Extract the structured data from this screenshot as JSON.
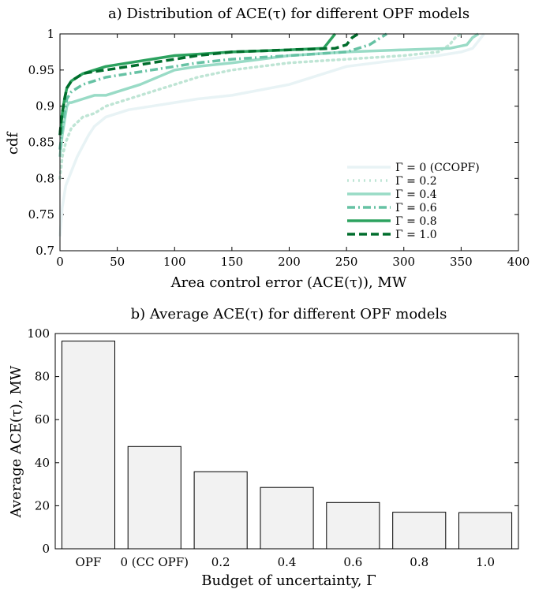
{
  "chart_data": [
    {
      "type": "line",
      "title": "a) Distribution of ACE(τ) for different OPF models",
      "xlabel": "Area control error (ACE(τ)), MW",
      "ylabel": "cdf",
      "xlim": [
        0,
        400
      ],
      "ylim": [
        0.7,
        1.0
      ],
      "xticks": [
        "0",
        "50",
        "100",
        "150",
        "200",
        "250",
        "300",
        "350",
        "400"
      ],
      "yticks": [
        "0.7",
        "0.75",
        "0.8",
        "0.85",
        "0.9",
        "0.95",
        "1"
      ],
      "grid": false,
      "legend_position": "bottom-right",
      "series": [
        {
          "name": "Γ = 0 (CCOPF)",
          "color": "#e8f3f5",
          "dash": "solid",
          "x": [
            0,
            2,
            5,
            10,
            15,
            20,
            25,
            30,
            40,
            50,
            60,
            80,
            100,
            120,
            150,
            200,
            250,
            300,
            330,
            350,
            360,
            365,
            370
          ],
          "y": [
            0.72,
            0.76,
            0.79,
            0.81,
            0.83,
            0.845,
            0.86,
            0.872,
            0.885,
            0.89,
            0.895,
            0.9,
            0.905,
            0.91,
            0.915,
            0.93,
            0.955,
            0.965,
            0.97,
            0.975,
            0.98,
            0.99,
            1.0
          ]
        },
        {
          "name": "Γ = 0.2",
          "color": "#bfe5d5",
          "dash": "dotted",
          "x": [
            0,
            2,
            5,
            10,
            20,
            30,
            40,
            50,
            60,
            80,
            100,
            120,
            150,
            200,
            250,
            300,
            330,
            340,
            345,
            350
          ],
          "y": [
            0.8,
            0.83,
            0.85,
            0.87,
            0.885,
            0.89,
            0.9,
            0.905,
            0.91,
            0.92,
            0.93,
            0.94,
            0.95,
            0.96,
            0.965,
            0.97,
            0.975,
            0.985,
            0.995,
            1.0
          ]
        },
        {
          "name": "Γ = 0.4",
          "color": "#99dbc6",
          "dash": "solid",
          "x": [
            0,
            2,
            4,
            6,
            8,
            10,
            20,
            30,
            40,
            50,
            70,
            100,
            120,
            150,
            200,
            250,
            300,
            340,
            355,
            360,
            365
          ],
          "y": [
            0.83,
            0.86,
            0.88,
            0.9,
            0.905,
            0.905,
            0.91,
            0.915,
            0.915,
            0.92,
            0.93,
            0.95,
            0.955,
            0.96,
            0.97,
            0.975,
            0.978,
            0.98,
            0.985,
            0.995,
            1.0
          ]
        },
        {
          "name": "Γ = 0.6",
          "color": "#66c2a4",
          "dash": "dashdot",
          "x": [
            0,
            2,
            4,
            6,
            10,
            20,
            30,
            40,
            60,
            80,
            100,
            120,
            150,
            200,
            250,
            270,
            280,
            285
          ],
          "y": [
            0.84,
            0.87,
            0.89,
            0.91,
            0.92,
            0.93,
            0.935,
            0.94,
            0.945,
            0.95,
            0.955,
            0.96,
            0.965,
            0.97,
            0.975,
            0.985,
            0.995,
            1.0
          ]
        },
        {
          "name": "Γ = 0.8",
          "color": "#2ca25f",
          "dash": "solid",
          "x": [
            0,
            2,
            4,
            6,
            10,
            20,
            30,
            40,
            60,
            80,
            100,
            120,
            150,
            200,
            230,
            235,
            240
          ],
          "y": [
            0.86,
            0.89,
            0.91,
            0.925,
            0.935,
            0.945,
            0.95,
            0.955,
            0.96,
            0.965,
            0.97,
            0.972,
            0.975,
            0.978,
            0.98,
            0.99,
            1.0
          ]
        },
        {
          "name": "Γ = 1.0",
          "color": "#006d2c",
          "dash": "dashed",
          "x": [
            0,
            1,
            2,
            4,
            6,
            10,
            20,
            30,
            40,
            60,
            80,
            100,
            120,
            150,
            200,
            240,
            250,
            255,
            260
          ],
          "y": [
            0.86,
            0.88,
            0.89,
            0.91,
            0.925,
            0.935,
            0.945,
            0.948,
            0.95,
            0.955,
            0.96,
            0.965,
            0.97,
            0.975,
            0.978,
            0.98,
            0.985,
            0.995,
            1.0
          ]
        }
      ]
    },
    {
      "type": "bar",
      "title": "b) Average ACE(τ) for different OPF models",
      "xlabel": "Budget of uncertainty, Γ",
      "ylabel": "Average ACE(τ), MW",
      "ylim": [
        0,
        100
      ],
      "yticks": [
        "0",
        "20",
        "40",
        "60",
        "80",
        "100"
      ],
      "categories": [
        "OPF",
        "0 (CC OPF)",
        "0.2",
        "0.4",
        "0.6",
        "0.8",
        "1.0"
      ],
      "values": [
        96.5,
        47.5,
        35.8,
        28.5,
        21.5,
        17.0,
        16.8
      ],
      "bar_color": "#f2f2f2",
      "grid": false
    }
  ]
}
